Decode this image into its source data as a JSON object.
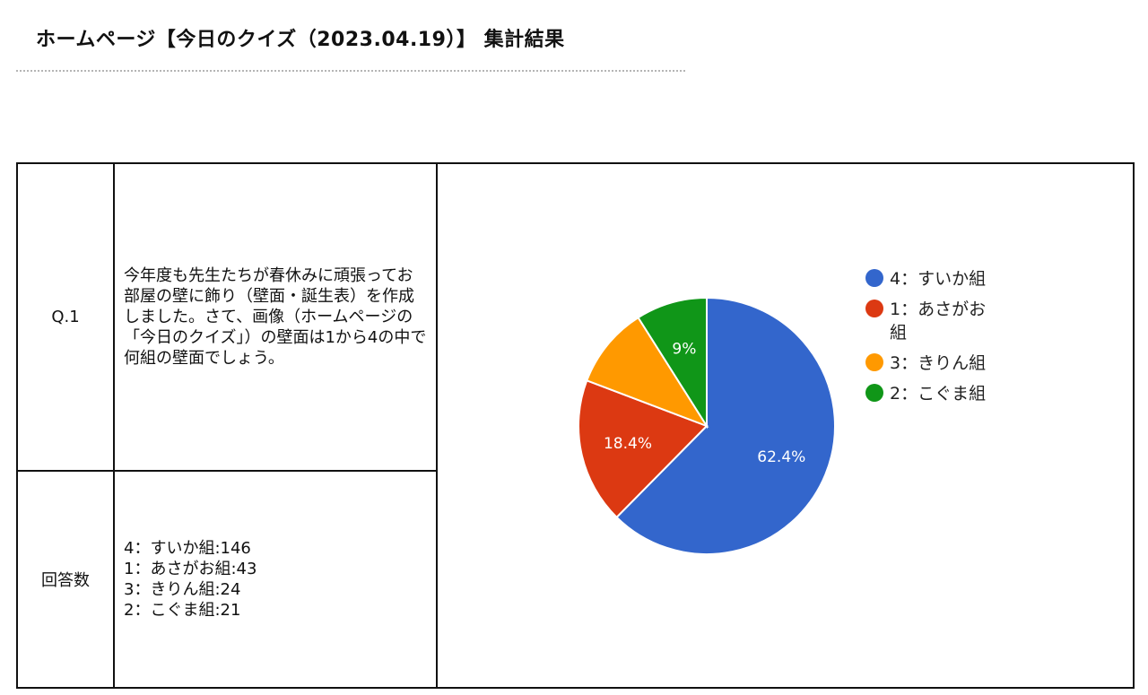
{
  "page": {
    "title": "ホームページ【今日のクイズ（2023.04.19）】 集計結果"
  },
  "table": {
    "question_header": "Q.1",
    "question_text": "今年度も先生たちが春休みに頑張ってお部屋の壁に飾り（壁面・誕生表）を作成しました。さて、画像（ホームページの「今日のクイズ」）の壁面は1から4の中で何組の壁面でしょう。",
    "answers_header": "回答数",
    "answers": [
      "4：すいか組:146",
      "1：あさがお組:43",
      "3：きりん組:24",
      "2：こぐま組:21"
    ]
  },
  "chart_data": {
    "type": "pie",
    "title": "",
    "legend_position": "right",
    "categories": [
      "4：すいか組",
      "1：あさがお組",
      "3：きりん組",
      "2：こぐま組"
    ],
    "values": [
      146,
      43,
      24,
      21
    ],
    "colors": [
      "#3366cc",
      "#dc3912",
      "#ff9900",
      "#109618"
    ],
    "slice_labels": [
      "62.4%",
      "18.4%",
      "",
      "9%"
    ]
  }
}
